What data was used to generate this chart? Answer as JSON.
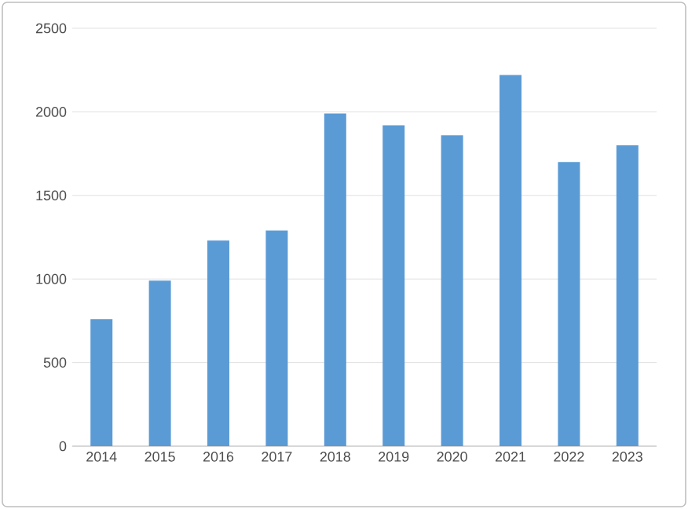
{
  "chart_data": {
    "type": "bar",
    "categories": [
      "2014",
      "2015",
      "2016",
      "2017",
      "2018",
      "2019",
      "2020",
      "2021",
      "2022",
      "2023"
    ],
    "values": [
      760,
      990,
      1230,
      1290,
      1990,
      1920,
      1860,
      2220,
      1700,
      1800
    ],
    "color": "#5b9bd5",
    "ylim": [
      0,
      2500
    ],
    "yticks": [
      0,
      500,
      1000,
      1500,
      2000,
      2500
    ],
    "grid": "y"
  }
}
